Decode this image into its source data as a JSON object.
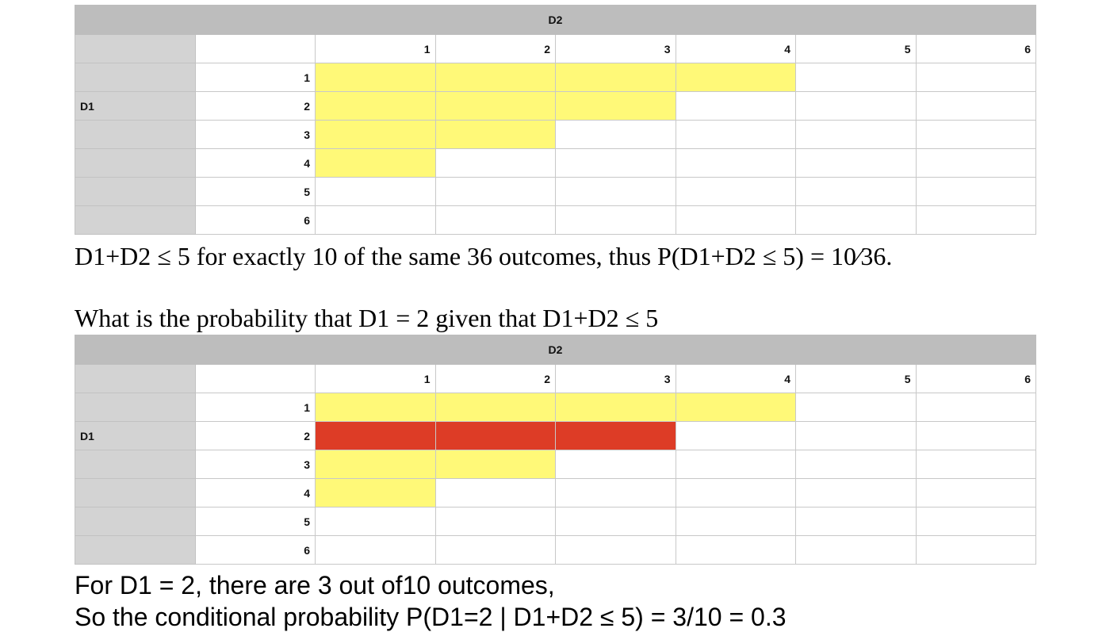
{
  "colors": {
    "header": "#bdbdbd",
    "side": "#d3d3d3",
    "highlight": "#fff978",
    "selected": "#dd3c26"
  },
  "table_top": {
    "title": "D2",
    "row_label": "D1",
    "columns": [
      "1",
      "2",
      "3",
      "4",
      "5",
      "6"
    ],
    "rows": [
      "1",
      "2",
      "3",
      "4",
      "5",
      "6"
    ],
    "highlight": [
      [
        1,
        1,
        1,
        1,
        0,
        0
      ],
      [
        1,
        1,
        1,
        0,
        0,
        0
      ],
      [
        1,
        1,
        0,
        0,
        0,
        0
      ],
      [
        1,
        0,
        0,
        0,
        0,
        0
      ],
      [
        0,
        0,
        0,
        0,
        0,
        0
      ],
      [
        0,
        0,
        0,
        0,
        0,
        0
      ]
    ]
  },
  "text_result": "D1+D2 ≤ 5 for exactly 10 of the same 36 outcomes, thus P(D1+D2 ≤ 5) =  10⁄36.",
  "text_question": "What is the probability that D1 = 2 given that D1+D2 ≤ 5",
  "table_bottom": {
    "title": "D2",
    "row_label": "D1",
    "columns": [
      "1",
      "2",
      "3",
      "4",
      "5",
      "6"
    ],
    "rows": [
      "1",
      "2",
      "3",
      "4",
      "5",
      "6"
    ],
    "highlight": [
      [
        1,
        1,
        1,
        1,
        0,
        0
      ],
      [
        2,
        2,
        2,
        0,
        0,
        0
      ],
      [
        1,
        1,
        0,
        0,
        0,
        0
      ],
      [
        1,
        0,
        0,
        0,
        0,
        0
      ],
      [
        0,
        0,
        0,
        0,
        0,
        0
      ],
      [
        0,
        0,
        0,
        0,
        0,
        0
      ]
    ]
  },
  "text_answer_1": "For D1 = 2, there are 3 out of10 outcomes,",
  "text_answer_2": "So the conditional probability P(D1=2 | D1+D2 ≤ 5) = 3/10 = 0.3"
}
